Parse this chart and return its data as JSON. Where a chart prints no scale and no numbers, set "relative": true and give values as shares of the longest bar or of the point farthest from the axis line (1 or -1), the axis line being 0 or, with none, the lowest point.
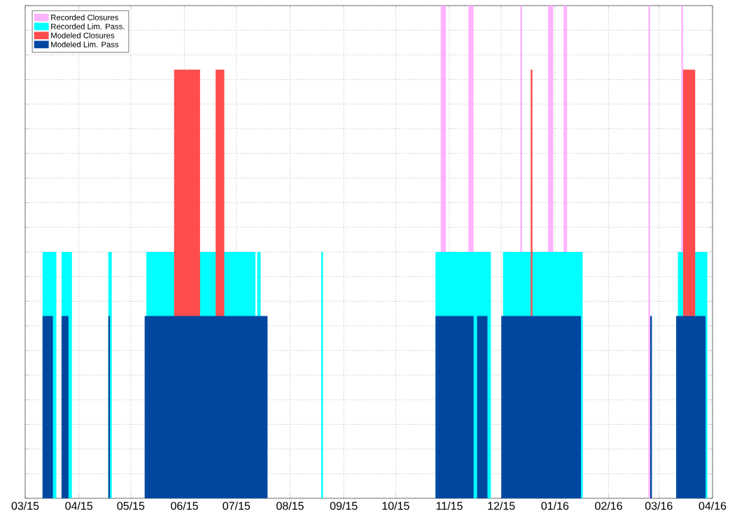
{
  "chart_data": {
    "type": "area",
    "relative": true,
    "grid": true,
    "legend": "top left",
    "xlim": [
      "2015-03-01",
      "2016-04-01"
    ],
    "xticks": [
      {
        "value": "2015-03-01",
        "label": "03/15"
      },
      {
        "value": "2015-04-01",
        "label": "04/15"
      },
      {
        "value": "2015-05-01",
        "label": "05/15"
      },
      {
        "value": "2015-06-01",
        "label": "06/15"
      },
      {
        "value": "2015-07-01",
        "label": "07/15"
      },
      {
        "value": "2015-08-01",
        "label": "08/15"
      },
      {
        "value": "2015-09-01",
        "label": "09/15"
      },
      {
        "value": "2015-10-01",
        "label": "10/15"
      },
      {
        "value": "2015-11-01",
        "label": "11/15"
      },
      {
        "value": "2015-12-01",
        "label": "12/15"
      },
      {
        "value": "2016-01-01",
        "label": "01/16"
      },
      {
        "value": "2016-02-01",
        "label": "02/16"
      },
      {
        "value": "2016-03-01",
        "label": "03/16"
      },
      {
        "value": "2016-04-01",
        "label": "04/16"
      }
    ],
    "series": [
      {
        "name": "Recorded Closures",
        "color": "#ffb3ff",
        "x": [
          "2015-10-27",
          "2015-10-27",
          "2015-10-30",
          "2015-10-30",
          "2015-11-12",
          "2015-11-12",
          "2015-11-15",
          "2015-11-15",
          "2015-12-12",
          "2015-12-12",
          "2015-12-13",
          "2015-12-13",
          "2015-12-28",
          "2015-12-28",
          "2015-12-31",
          "2015-12-31",
          "2016-01-06",
          "2016-01-06",
          "2016-01-08",
          "2016-01-08",
          "2016-02-24",
          "2016-02-24",
          "2016-02-25",
          "2016-02-25",
          "2016-03-14",
          "2016-03-14",
          "2016-03-15",
          "2016-03-15"
        ],
        "values": [
          0,
          1,
          1,
          0,
          0,
          1,
          1,
          0,
          0,
          1,
          1,
          0,
          0,
          1,
          1,
          0,
          0,
          1,
          1,
          0,
          0,
          1,
          1,
          0,
          0,
          1,
          1,
          0
        ]
      },
      {
        "name": "Recorded Lim. Pass.",
        "color": "#00ffff",
        "x": [
          "2015-03-11",
          "2015-03-11",
          "2015-03-19",
          "2015-03-19",
          "2015-03-22",
          "2015-03-22",
          "2015-03-28",
          "2015-03-28",
          "2015-04-18",
          "2015-04-18",
          "2015-04-20",
          "2015-04-20",
          "2015-05-10",
          "2015-05-10",
          "2015-07-12",
          "2015-07-12",
          "2015-07-13",
          "2015-07-13",
          "2015-07-15",
          "2015-07-15",
          "2015-08-19",
          "2015-08-19",
          "2015-08-20",
          "2015-08-20",
          "2015-10-24",
          "2015-10-24",
          "2015-11-25",
          "2015-11-25",
          "2015-12-02",
          "2015-12-02",
          "2016-01-17",
          "2016-01-17",
          "2016-03-12",
          "2016-03-12",
          "2016-03-29",
          "2016-03-29"
        ],
        "values": [
          0,
          0.5,
          0.5,
          0,
          0,
          0.5,
          0.5,
          0,
          0,
          0.5,
          0.5,
          0,
          0,
          0.5,
          0.5,
          0,
          0,
          0.5,
          0.5,
          0,
          0,
          0.5,
          0.5,
          0,
          0,
          0.5,
          0.5,
          0,
          0,
          0.5,
          0.5,
          0,
          0,
          0.5,
          0.5,
          0
        ]
      },
      {
        "name": "Modeled Closures",
        "color": "#ff4d4d",
        "x": [
          "2015-05-26",
          "2015-05-26",
          "2015-06-10",
          "2015-06-10",
          "2015-06-19",
          "2015-06-19",
          "2015-06-24",
          "2015-06-24",
          "2015-12-18",
          "2015-12-18",
          "2015-12-19",
          "2015-12-19",
          "2016-03-15",
          "2016-03-15",
          "2016-03-22",
          "2016-03-22"
        ],
        "values": [
          0,
          0.87,
          0.87,
          0,
          0,
          0.87,
          0.87,
          0,
          0,
          0.87,
          0.87,
          0,
          0,
          0.87,
          0.87,
          0
        ]
      },
      {
        "name": "Modeled Lim. Pass",
        "color": "#0047a0",
        "x": [
          "2015-03-11",
          "2015-03-11",
          "2015-03-17",
          "2015-03-17",
          "2015-03-22",
          "2015-03-22",
          "2015-03-26",
          "2015-03-26",
          "2015-04-18",
          "2015-04-18",
          "2015-04-19",
          "2015-04-19",
          "2015-05-09",
          "2015-05-09",
          "2015-07-19",
          "2015-07-19",
          "2015-10-24",
          "2015-10-24",
          "2015-11-15",
          "2015-11-15",
          "2015-11-17",
          "2015-11-17",
          "2015-11-23",
          "2015-11-23",
          "2015-12-01",
          "2015-12-01",
          "2016-01-16",
          "2016-01-16",
          "2016-02-25",
          "2016-02-25",
          "2016-02-26",
          "2016-02-26",
          "2016-03-11",
          "2016-03-11",
          "2016-03-28",
          "2016-03-28"
        ],
        "values": [
          0,
          0.37,
          0.37,
          0,
          0,
          0.37,
          0.37,
          0,
          0,
          0.37,
          0.37,
          0,
          0,
          0.37,
          0.37,
          0,
          0,
          0.37,
          0.37,
          0,
          0,
          0.37,
          0.37,
          0,
          0,
          0.37,
          0.37,
          0,
          0,
          0.37,
          0.37,
          0,
          0,
          0.37,
          0.37,
          0
        ]
      }
    ]
  }
}
